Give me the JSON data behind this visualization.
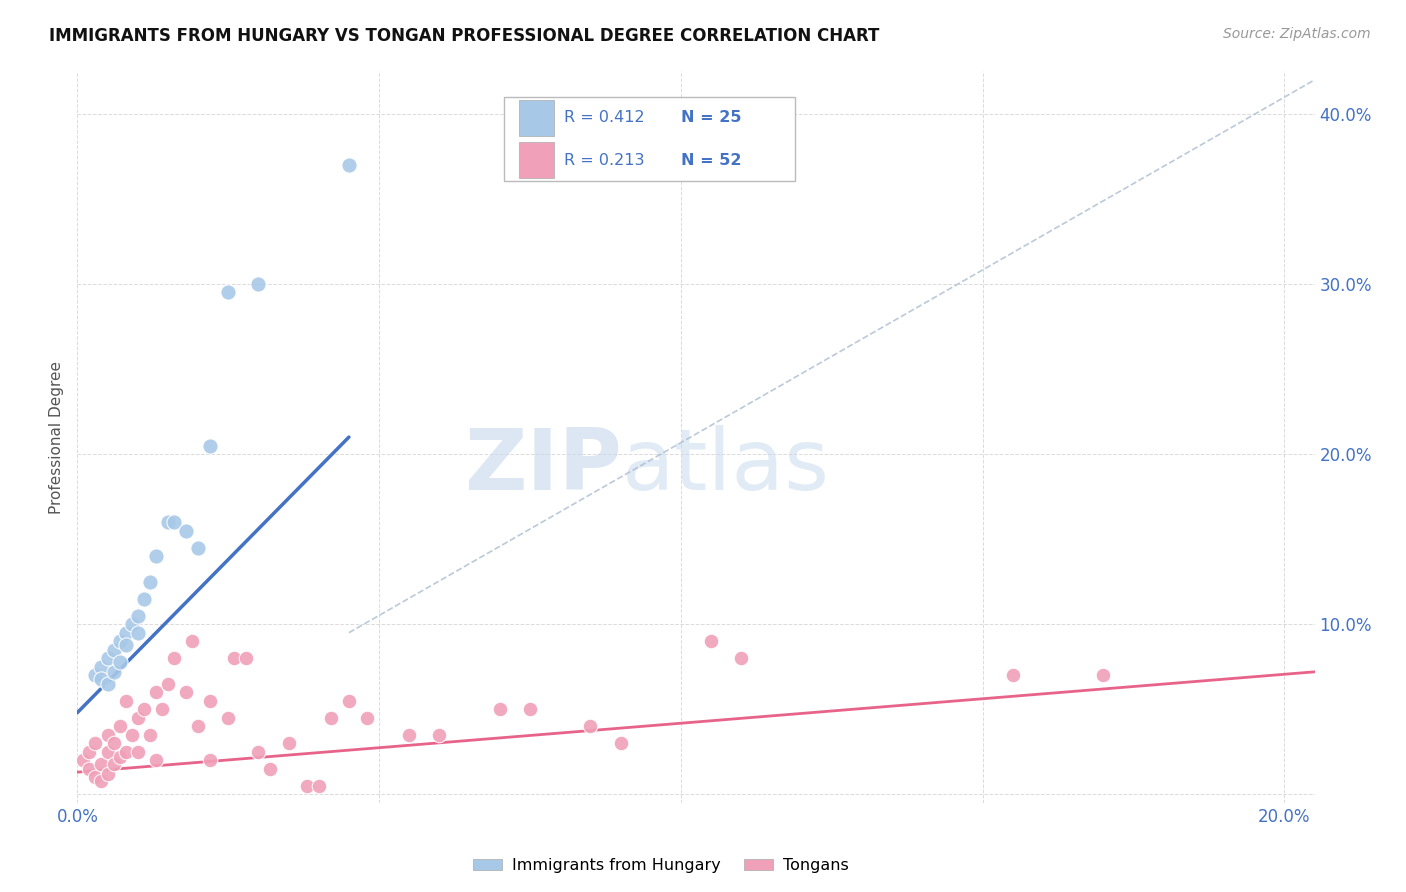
{
  "title": "IMMIGRANTS FROM HUNGARY VS TONGAN PROFESSIONAL DEGREE CORRELATION CHART",
  "source": "Source: ZipAtlas.com",
  "ylabel": "Professional Degree",
  "xlim": [
    0.0,
    0.205
  ],
  "ylim": [
    -0.005,
    0.425
  ],
  "xtick_pos": [
    0.0,
    0.05,
    0.1,
    0.15,
    0.2
  ],
  "xtick_labels": [
    "0.0%",
    "",
    "",
    "",
    "20.0%"
  ],
  "ytick_pos": [
    0.0,
    0.1,
    0.2,
    0.3,
    0.4
  ],
  "right_ytick_labels": [
    "",
    "10.0%",
    "20.0%",
    "30.0%",
    "40.0%"
  ],
  "legend_r1": "R = 0.412",
  "legend_n1": "N = 25",
  "legend_r2": "R = 0.213",
  "legend_n2": "N = 52",
  "color_hungary": "#A8C8E8",
  "color_tongan": "#F0A0B8",
  "color_line_hungary": "#4472C4",
  "color_line_tongan": "#E8638A",
  "color_dashed": "#AABCD0",
  "watermark_zip": "ZIP",
  "watermark_atlas": "atlas",
  "hungary_x": [
    0.003,
    0.004,
    0.004,
    0.005,
    0.005,
    0.006,
    0.006,
    0.007,
    0.007,
    0.008,
    0.008,
    0.009,
    0.01,
    0.01,
    0.011,
    0.012,
    0.013,
    0.015,
    0.016,
    0.018,
    0.02,
    0.022,
    0.025,
    0.03,
    0.045
  ],
  "hungary_y": [
    0.07,
    0.075,
    0.068,
    0.065,
    0.08,
    0.072,
    0.085,
    0.078,
    0.09,
    0.095,
    0.088,
    0.1,
    0.105,
    0.095,
    0.115,
    0.125,
    0.14,
    0.16,
    0.16,
    0.155,
    0.145,
    0.205,
    0.295,
    0.3,
    0.37
  ],
  "tongan_x": [
    0.001,
    0.002,
    0.002,
    0.003,
    0.003,
    0.004,
    0.004,
    0.005,
    0.005,
    0.005,
    0.006,
    0.006,
    0.007,
    0.007,
    0.008,
    0.008,
    0.009,
    0.01,
    0.01,
    0.011,
    0.012,
    0.013,
    0.013,
    0.014,
    0.015,
    0.016,
    0.018,
    0.019,
    0.02,
    0.022,
    0.022,
    0.025,
    0.026,
    0.028,
    0.03,
    0.032,
    0.035,
    0.038,
    0.04,
    0.042,
    0.045,
    0.048,
    0.055,
    0.06,
    0.07,
    0.075,
    0.085,
    0.09,
    0.105,
    0.11,
    0.155,
    0.17
  ],
  "tongan_y": [
    0.02,
    0.015,
    0.025,
    0.01,
    0.03,
    0.008,
    0.018,
    0.012,
    0.025,
    0.035,
    0.018,
    0.03,
    0.022,
    0.04,
    0.025,
    0.055,
    0.035,
    0.025,
    0.045,
    0.05,
    0.035,
    0.02,
    0.06,
    0.05,
    0.065,
    0.08,
    0.06,
    0.09,
    0.04,
    0.02,
    0.055,
    0.045,
    0.08,
    0.08,
    0.025,
    0.015,
    0.03,
    0.005,
    0.005,
    0.045,
    0.055,
    0.045,
    0.035,
    0.035,
    0.05,
    0.05,
    0.04,
    0.03,
    0.09,
    0.08,
    0.07,
    0.07
  ],
  "hungary_line_x": [
    0.0,
    0.045
  ],
  "hungary_line_y": [
    0.048,
    0.21
  ],
  "tongan_line_x": [
    0.0,
    0.205
  ],
  "tongan_line_y": [
    0.013,
    0.072
  ],
  "dashed_line_x": [
    0.045,
    0.205
  ],
  "dashed_line_y": [
    0.095,
    0.42
  ]
}
